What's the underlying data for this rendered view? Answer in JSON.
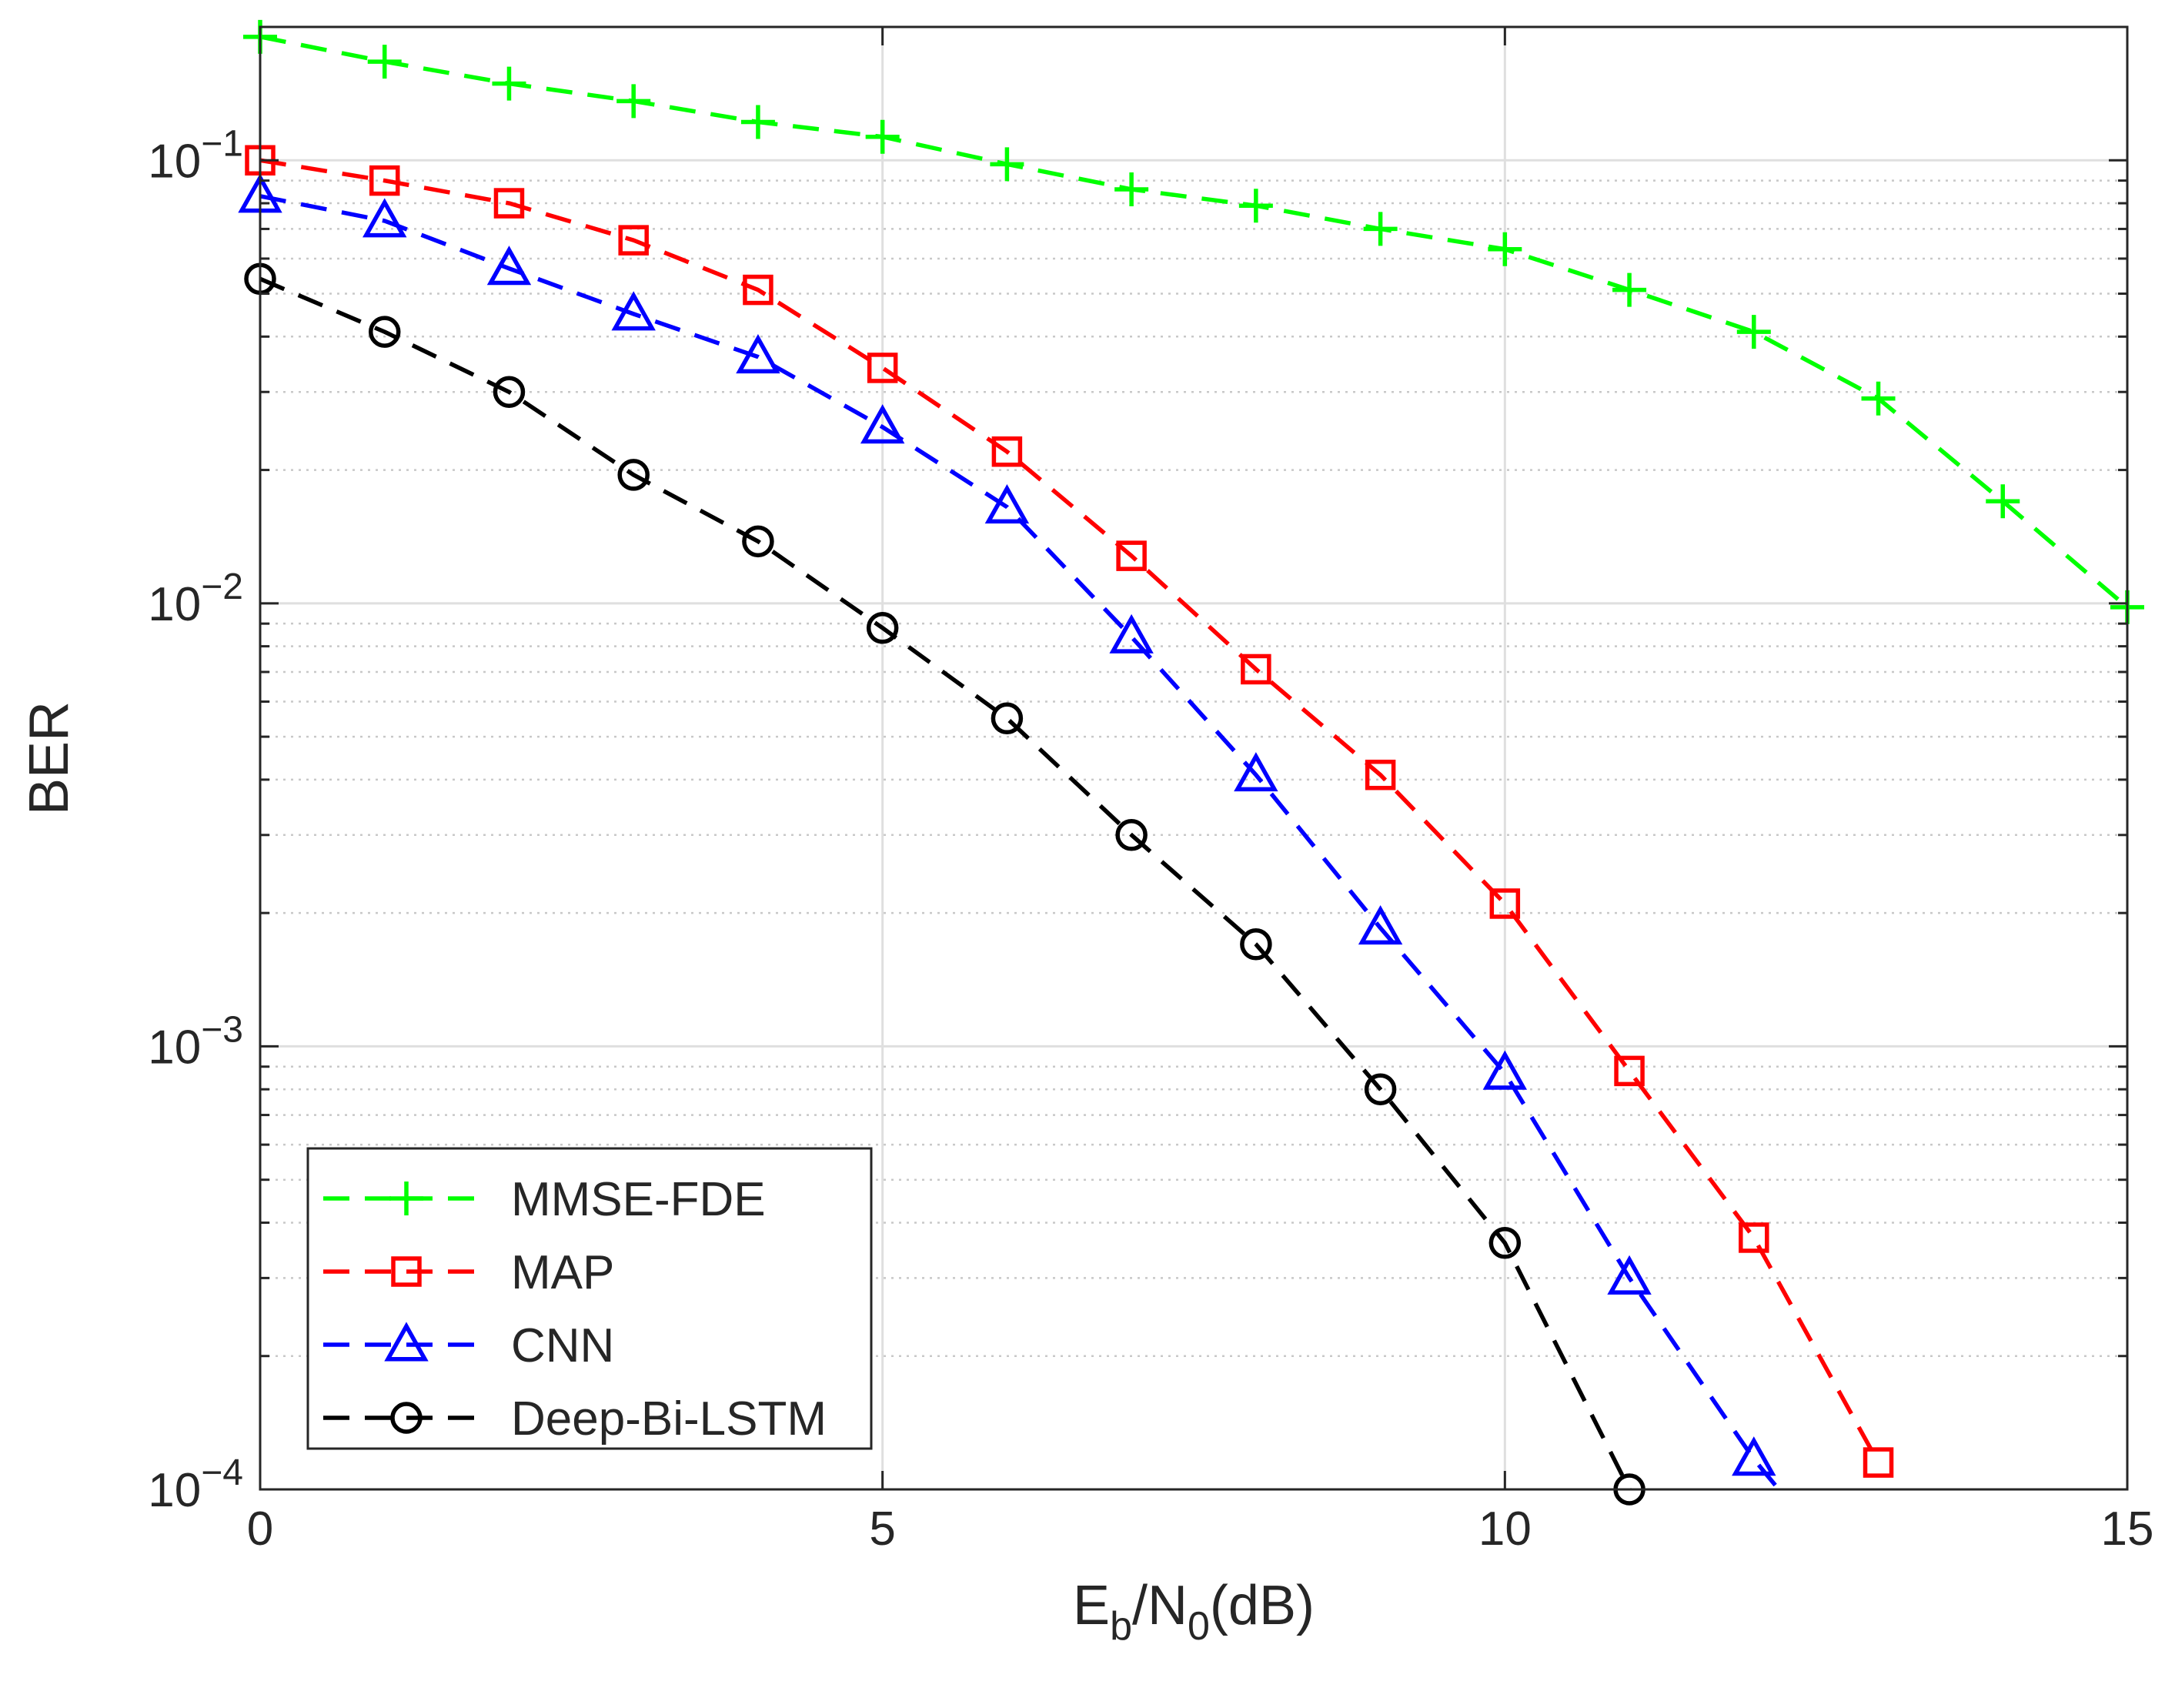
{
  "chart_data": {
    "type": "line",
    "title": "",
    "xlabel": {
      "main": "E",
      "sub1": "b",
      "mid": "/N",
      "sub2": "0",
      "tail": "(dB)"
    },
    "ylabel": "BER",
    "xlim": [
      0,
      15
    ],
    "ylim": [
      0.0001,
      0.2
    ],
    "yscale": "log",
    "grid": "on",
    "x_ticks": [
      0,
      5,
      10,
      15
    ],
    "x_tick_labels": [
      "0",
      "5",
      "10",
      "15"
    ],
    "y_ticks": [
      {
        "value": 0.1,
        "base": "10",
        "exp": "−1"
      },
      {
        "value": 0.01,
        "base": "10",
        "exp": "−2"
      },
      {
        "value": 0.001,
        "base": "10",
        "exp": "−3"
      },
      {
        "value": 0.0001,
        "base": "10",
        "exp": "−4"
      }
    ],
    "legend_position": "bottom-left",
    "series": [
      {
        "name": "MMSE-FDE",
        "color": "#00ff00",
        "marker": "plus",
        "x": [
          0,
          1,
          2,
          3,
          4,
          5,
          6,
          7,
          8,
          9,
          10,
          11,
          12,
          13,
          14,
          15
        ],
        "values": [
          0.19,
          0.167,
          0.149,
          0.136,
          0.122,
          0.113,
          0.098,
          0.086,
          0.079,
          0.07,
          0.063,
          0.051,
          0.041,
          0.029,
          0.017,
          0.0098
        ]
      },
      {
        "name": "MAP",
        "color": "#ff0000",
        "marker": "square",
        "x": [
          0,
          1,
          2,
          3,
          4,
          5,
          6,
          7,
          8,
          9,
          10,
          11,
          12,
          13
        ],
        "values": [
          0.1,
          0.09,
          0.08,
          0.066,
          0.051,
          0.034,
          0.022,
          0.0128,
          0.0071,
          0.0041,
          0.0021,
          0.00088,
          0.00037,
          0.000115
        ]
      },
      {
        "name": "CNN",
        "color": "#0000ff",
        "marker": "triangle",
        "x": [
          0,
          1,
          2,
          3,
          4,
          5,
          6,
          7,
          8,
          9,
          10,
          11,
          12,
          12.2
        ],
        "values": [
          0.083,
          0.073,
          0.057,
          0.045,
          0.036,
          0.025,
          0.0165,
          0.0084,
          0.0041,
          0.00185,
          0.00087,
          0.0003,
          0.000117,
          0.0001
        ],
        "marker_count": 13
      },
      {
        "name": "Deep-Bi-LSTM",
        "color": "#000000",
        "marker": "circle",
        "x": [
          0,
          1,
          2,
          3,
          4,
          5,
          6,
          7,
          8,
          9,
          10,
          11
        ],
        "values": [
          0.054,
          0.041,
          0.03,
          0.0195,
          0.0138,
          0.0088,
          0.0055,
          0.003,
          0.0017,
          0.0008,
          0.00036,
          0.0001
        ]
      }
    ]
  }
}
